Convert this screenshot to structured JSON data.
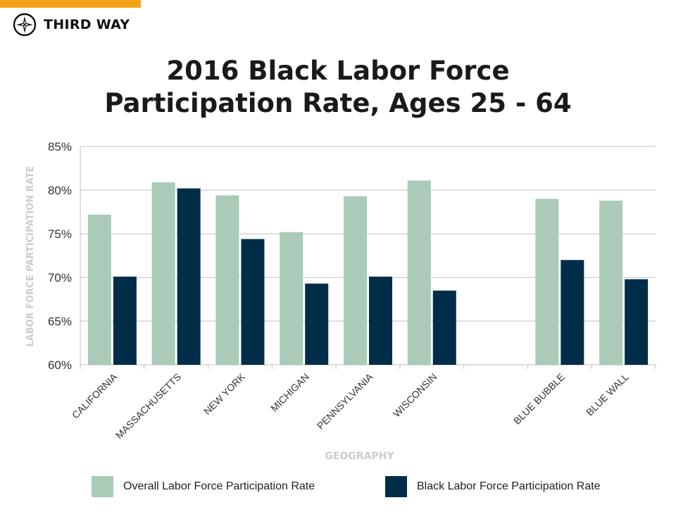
{
  "brand": {
    "name": "THIRD WAY",
    "accent_color": "#f5a31a"
  },
  "title_lines": [
    "2016 Black Labor Force",
    "Participation Rate, Ages 25 - 64"
  ],
  "colors": {
    "overall": "#a9cbb8",
    "black": "#012d48",
    "grid": "#cccccc",
    "axis_label": "#cccccc"
  },
  "legend": {
    "overall_label": "Overall Labor Force Participation Rate",
    "black_label": "Black Labor Force Participation Rate"
  },
  "chart_data": {
    "type": "bar",
    "title": "2016 Black Labor Force Participation Rate, Ages 25 - 64",
    "xlabel": "GEOGRAPHY",
    "ylabel": "LABOR FORCE PARTICIPATION RATE",
    "ylim": [
      60,
      85
    ],
    "yticks": [
      60,
      65,
      70,
      75,
      80,
      85
    ],
    "ytick_labels": [
      "60%",
      "65%",
      "70%",
      "75%",
      "80%",
      "85%"
    ],
    "grid": true,
    "legend_position": "bottom",
    "categories": [
      "CALIFORNIA",
      "MASSACHUSETTS",
      "NEW YORK",
      "MICHIGAN",
      "PENNSYLVANIA",
      "WISCONSIN",
      "",
      "BLUE BUBBLE",
      "BLUE WALL"
    ],
    "series": [
      {
        "name": "Overall Labor Force Participation Rate",
        "values": [
          77.2,
          80.9,
          79.4,
          75.2,
          79.3,
          81.1,
          null,
          79.0,
          78.8
        ]
      },
      {
        "name": "Black Labor Force Participation Rate",
        "values": [
          70.1,
          80.2,
          74.4,
          69.3,
          70.1,
          68.5,
          null,
          72.0,
          69.8
        ]
      }
    ]
  }
}
